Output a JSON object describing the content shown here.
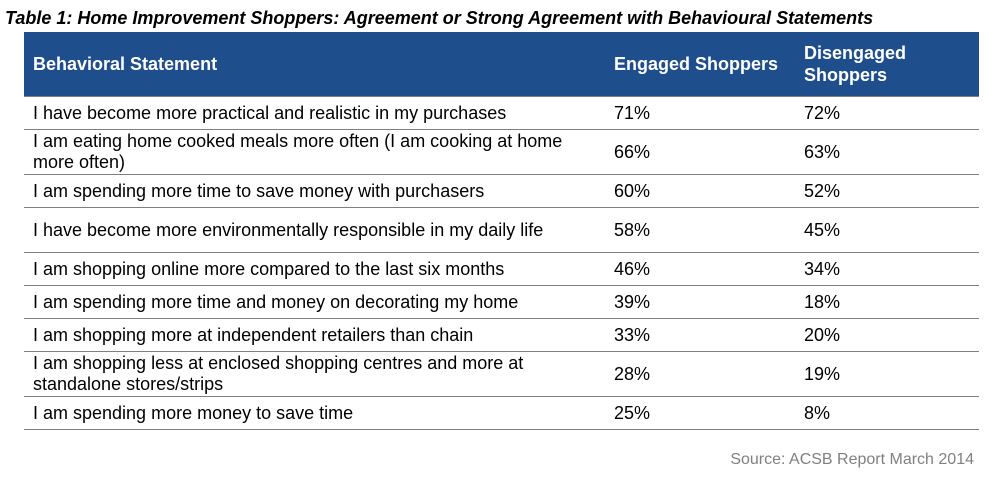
{
  "title": "Table 1: Home Improvement Shoppers: Agreement or Strong Agreement with Behavioural Statements",
  "columns": [
    "Behavioral Statement",
    "Engaged Shoppers",
    "Disengaged Shoppers"
  ],
  "rows": [
    {
      "statement": "I have become more practical and realistic in my purchases",
      "engaged": "71%",
      "disengaged": "72%"
    },
    {
      "statement": "I am eating home cooked meals more often (I am cooking at home more often)",
      "engaged": "66%",
      "disengaged": "63%"
    },
    {
      "statement": "I am spending more time to save money with purchasers",
      "engaged": "60%",
      "disengaged": "52%"
    },
    {
      "statement": "I have become more environmentally responsible in my daily life",
      "engaged": "58%",
      "disengaged": "45%"
    },
    {
      "statement": "I am shopping online more compared to the last six months",
      "engaged": "46%",
      "disengaged": "34%"
    },
    {
      "statement": "I am spending more time and money on decorating my home",
      "engaged": "39%",
      "disengaged": "18%"
    },
    {
      "statement": "I am shopping more at independent retailers than chain",
      "engaged": "33%",
      "disengaged": "20%"
    },
    {
      "statement": "I am shopping less at enclosed shopping centres and more at standalone stores/strips",
      "engaged": "28%",
      "disengaged": "19%"
    },
    {
      "statement": "I am spending more money to save time",
      "engaged": "25%",
      "disengaged": "8%"
    }
  ],
  "source": "Source: ACSB Report March 2014",
  "colors": {
    "header_bg": "#1f4e8c",
    "header_text": "#ffffff",
    "source_text": "#808080"
  }
}
